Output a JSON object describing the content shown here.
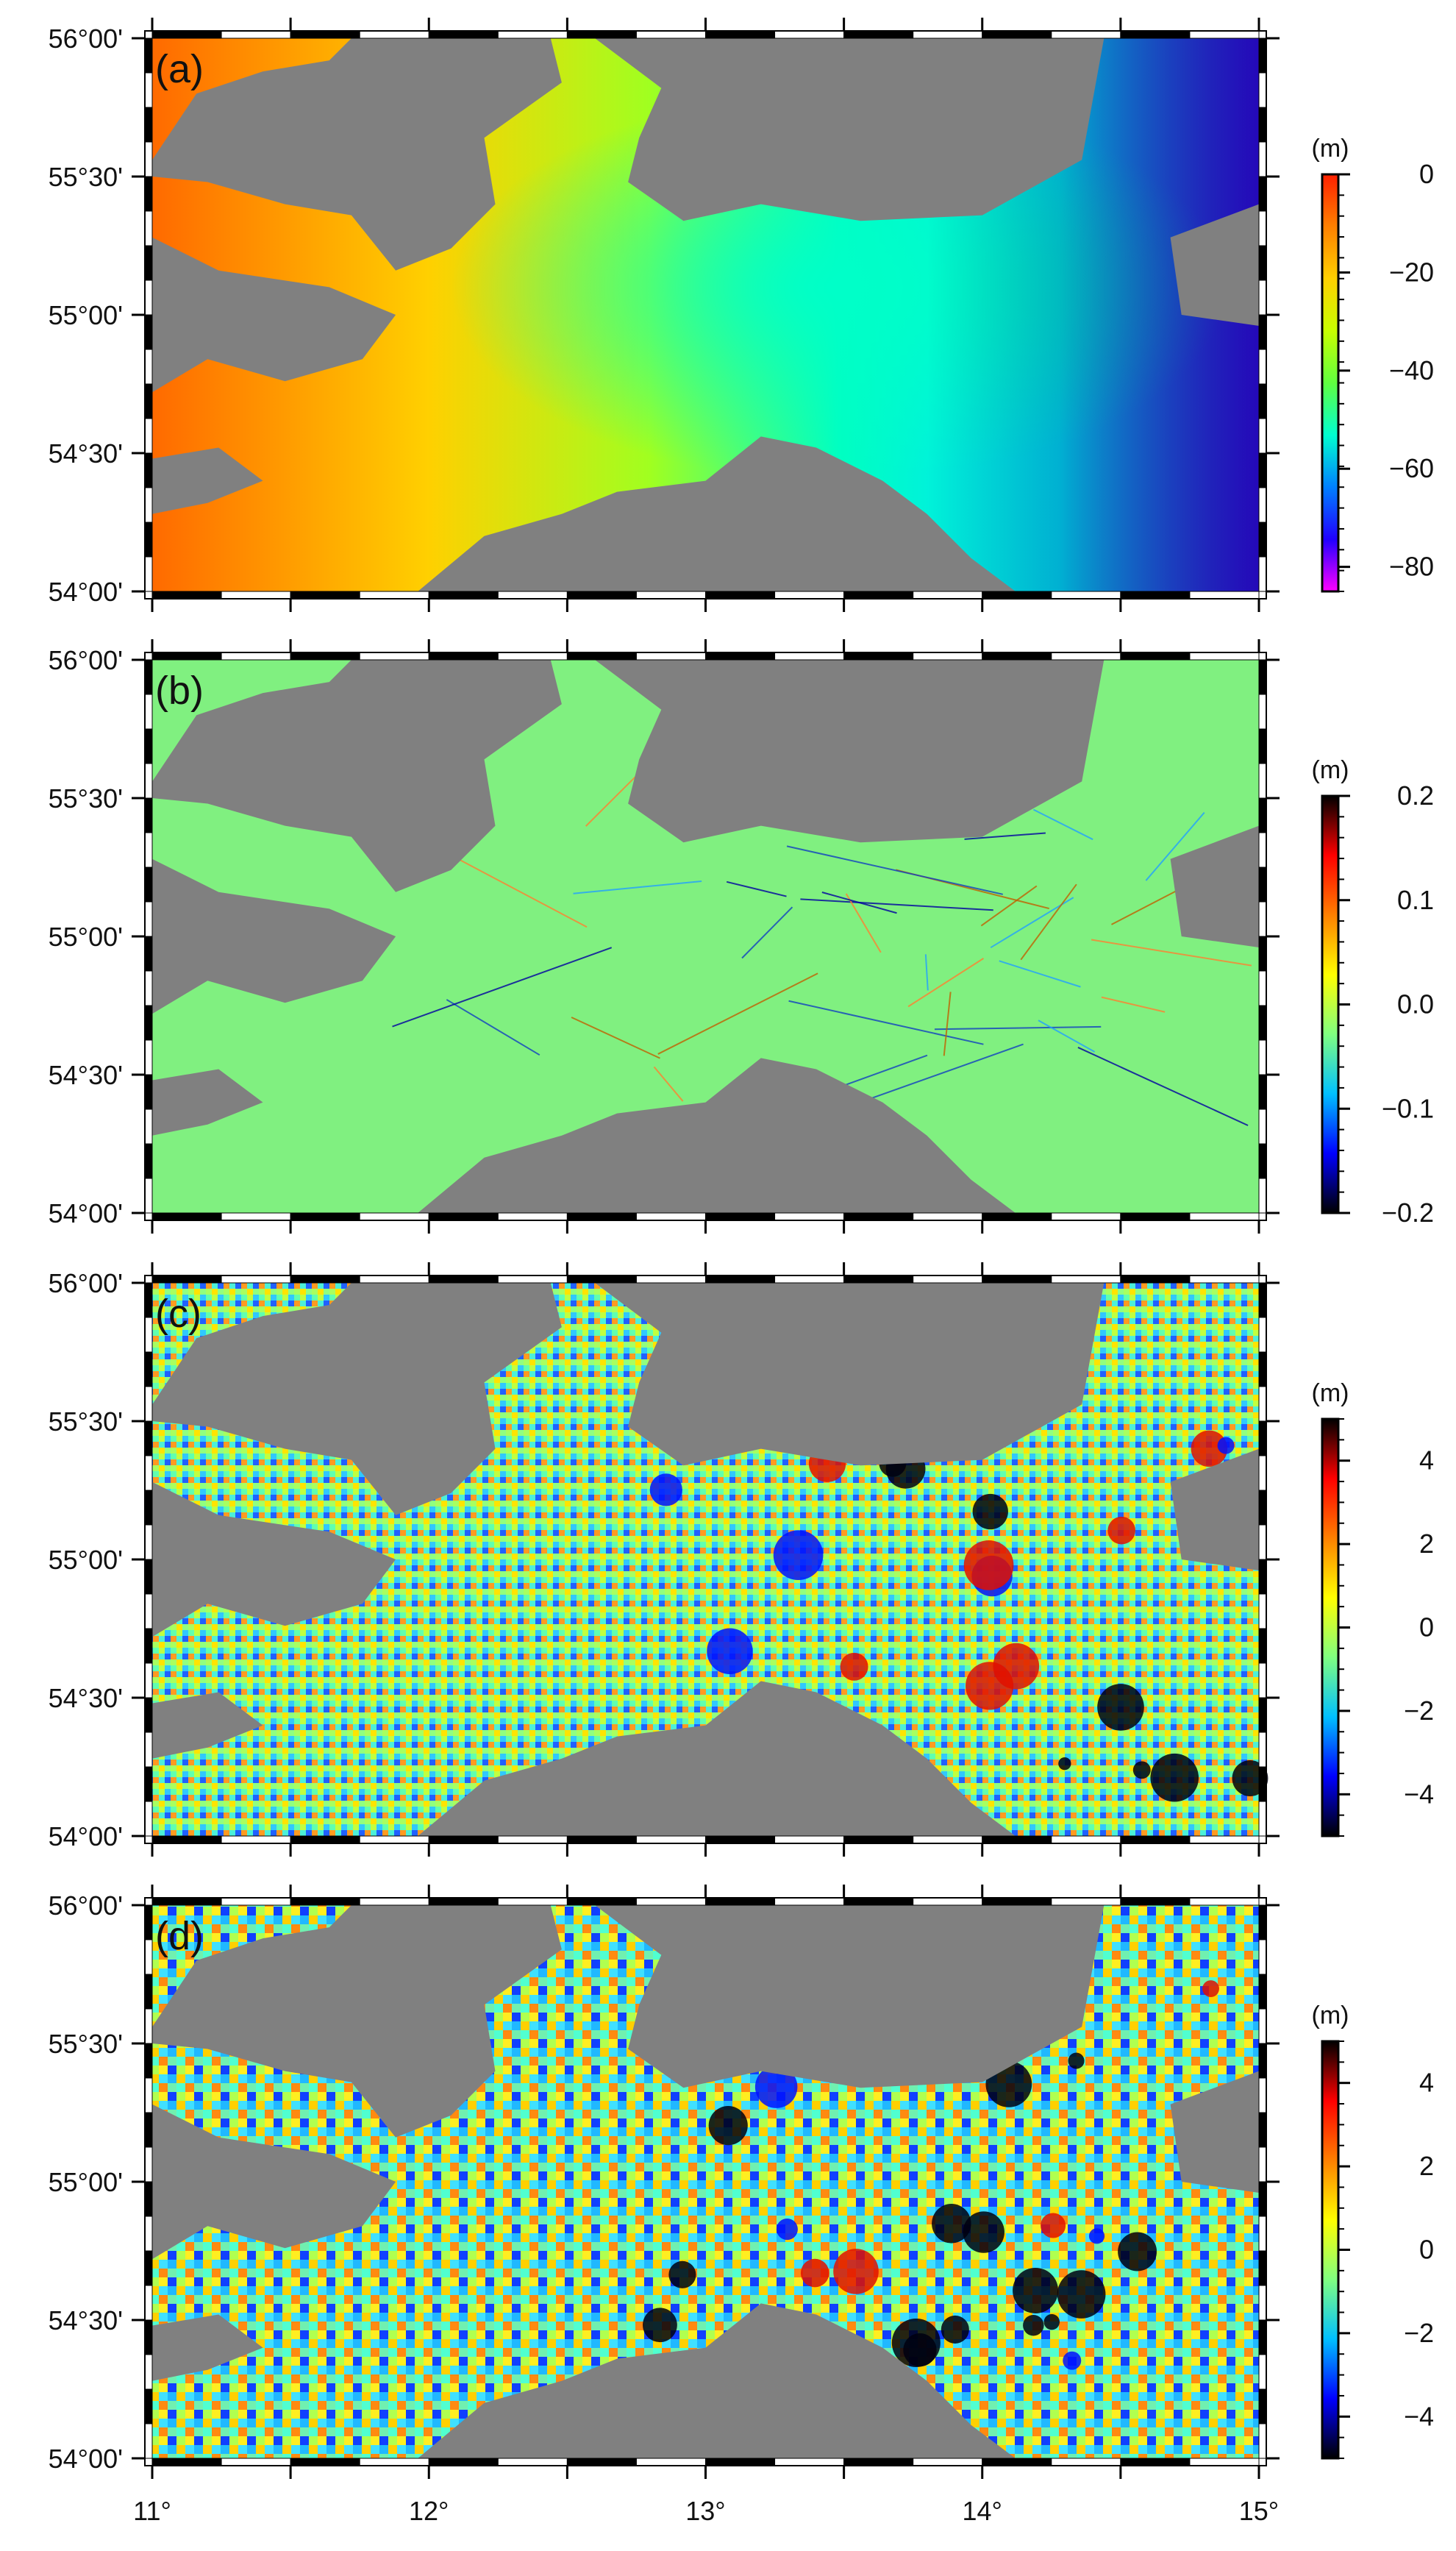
{
  "map": {
    "lon_ticks": [
      "11°",
      "12°",
      "13°",
      "14°",
      "15°"
    ],
    "lat_ticks": [
      "56°00'",
      "55°30'",
      "55°00'",
      "54°30'",
      "54°00'"
    ],
    "lon_range": [
      11,
      15
    ],
    "lat_range": [
      54,
      56
    ],
    "land_color": "#808080",
    "frame_colors": [
      "#000000",
      "#ffffff"
    ]
  },
  "panels": [
    {
      "label": "(a)",
      "colorbar": {
        "unit": "(m)",
        "ticks": [
          "0",
          "−20",
          "−40",
          "−60",
          "−80"
        ],
        "tick_values": [
          0,
          -20,
          -40,
          -60,
          -80
        ],
        "range": [
          -85,
          0
        ],
        "colors": [
          "#ff00ff",
          "#2000ff",
          "#0080ff",
          "#00ffd0",
          "#60ff40",
          "#c8ff00",
          "#ffd000",
          "#ff8000",
          "#ff2000"
        ]
      }
    },
    {
      "label": "(b)",
      "colorbar": {
        "unit": "(m)",
        "ticks": [
          "0.2",
          "0.1",
          "0.0",
          "−0.1",
          "−0.2"
        ],
        "tick_values": [
          0.2,
          0.1,
          0.0,
          -0.1,
          -0.2
        ],
        "range": [
          -0.2,
          0.2
        ],
        "colors": [
          "#000000",
          "#0000ff",
          "#00c0ff",
          "#80ff80",
          "#ffff00",
          "#ff8000",
          "#ff0000",
          "#000000"
        ]
      }
    },
    {
      "label": "(c)",
      "colorbar": {
        "unit": "(m)",
        "ticks": [
          "4",
          "2",
          "0",
          "−2",
          "−4"
        ],
        "tick_values": [
          4,
          2,
          0,
          -2,
          -4
        ],
        "range": [
          -5,
          5
        ],
        "colors": [
          "#000000",
          "#0000ff",
          "#00c0ff",
          "#80ff80",
          "#ffff00",
          "#ff8000",
          "#ff0000",
          "#000000"
        ]
      }
    },
    {
      "label": "(d)",
      "colorbar": {
        "unit": "(m)",
        "ticks": [
          "4",
          "2",
          "0",
          "−2",
          "−4"
        ],
        "tick_values": [
          4,
          2,
          0,
          -2,
          -4
        ],
        "range": [
          -5,
          5
        ],
        "colors": [
          "#000000",
          "#0000ff",
          "#00c0ff",
          "#80ff80",
          "#ffff00",
          "#ff8000",
          "#ff0000",
          "#000000"
        ]
      }
    }
  ]
}
